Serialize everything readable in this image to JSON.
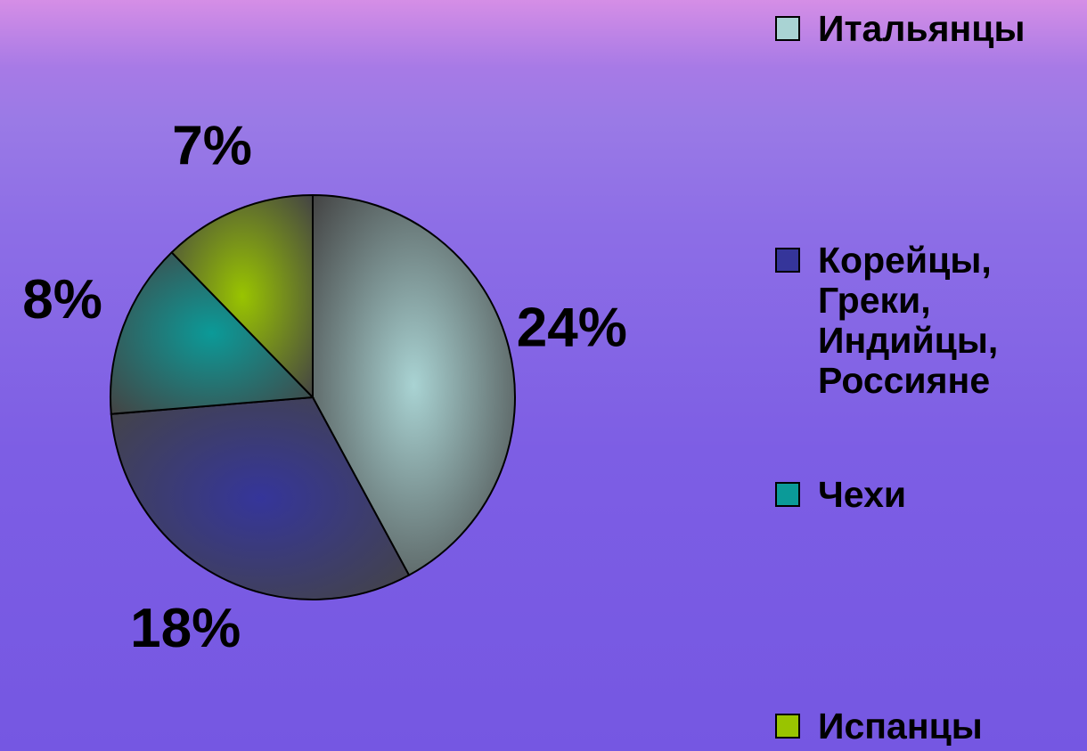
{
  "chart_data": {
    "type": "pie",
    "categories": [
      "Итальянцы",
      "Корейцы, Греки, Индийцы, Россияне",
      "Чехи",
      "Испанцы"
    ],
    "values": [
      24,
      18,
      8,
      7
    ],
    "value_labels": [
      "24%",
      "18%",
      "8%",
      "7%"
    ],
    "colors": [
      "#a9d3d3",
      "#35359a",
      "#0b9a98",
      "#99c400"
    ],
    "legend": "right"
  }
}
